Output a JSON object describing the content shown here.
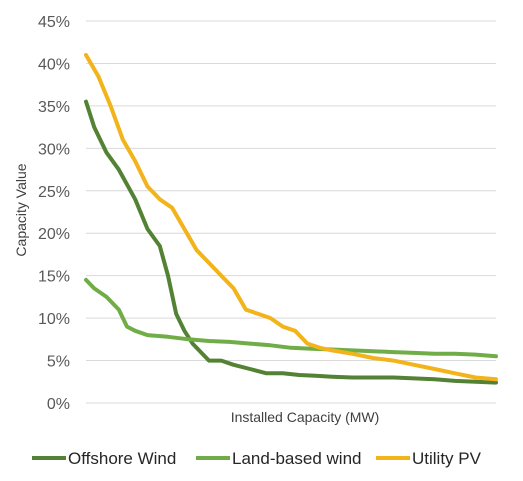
{
  "chart_data": {
    "type": "line",
    "title": "",
    "xlabel": "Installed Capacity (MW)",
    "ylabel": "Capacity Value",
    "ylim": [
      0,
      45
    ],
    "yticks": [
      "0%",
      "5%",
      "10%",
      "15%",
      "20%",
      "25%",
      "30%",
      "35%",
      "40%",
      "45%"
    ],
    "xlim": [
      0,
      100
    ],
    "x_tick_labels_shown": false,
    "grid": "horizontal",
    "legend_position": "bottom",
    "series": [
      {
        "name": "Offshore Wind",
        "color": "#548235",
        "x": [
          0,
          2,
          5,
          8,
          12,
          15,
          18,
          20,
          22,
          24,
          26,
          28,
          30,
          33,
          36,
          40,
          44,
          48,
          52,
          56,
          60,
          65,
          70,
          75,
          80,
          85,
          90,
          95,
          100
        ],
        "y": [
          35.5,
          32.5,
          29.5,
          27.5,
          24.0,
          20.5,
          18.5,
          15.0,
          10.5,
          8.5,
          7.0,
          6.0,
          5.0,
          5.0,
          4.5,
          4.0,
          3.5,
          3.5,
          3.3,
          3.2,
          3.1,
          3.0,
          3.0,
          3.0,
          2.9,
          2.8,
          2.6,
          2.5,
          2.4
        ]
      },
      {
        "name": "Land-based wind",
        "color": "#70ad47",
        "x": [
          0,
          2,
          5,
          8,
          10,
          12,
          15,
          20,
          25,
          30,
          35,
          40,
          45,
          50,
          55,
          60,
          65,
          70,
          75,
          80,
          85,
          90,
          95,
          100
        ],
        "y": [
          14.5,
          13.5,
          12.5,
          11.0,
          9.0,
          8.5,
          8.0,
          7.8,
          7.5,
          7.3,
          7.2,
          7.0,
          6.8,
          6.5,
          6.4,
          6.3,
          6.2,
          6.1,
          6.0,
          5.9,
          5.8,
          5.8,
          5.7,
          5.5
        ]
      },
      {
        "name": "Utility PV",
        "color": "#f2b31b",
        "x": [
          0,
          3,
          6,
          9,
          12,
          15,
          18,
          21,
          24,
          27,
          30,
          33,
          36,
          39,
          42,
          45,
          48,
          51,
          54,
          57,
          60,
          65,
          70,
          75,
          80,
          85,
          90,
          95,
          100
        ],
        "y": [
          41.0,
          38.5,
          35.0,
          31.0,
          28.5,
          25.5,
          24.0,
          23.0,
          20.5,
          18.0,
          16.5,
          15.0,
          13.5,
          11.0,
          10.5,
          10.0,
          9.0,
          8.5,
          7.0,
          6.5,
          6.2,
          5.8,
          5.3,
          5.0,
          4.5,
          4.0,
          3.5,
          3.0,
          2.8
        ]
      }
    ]
  }
}
